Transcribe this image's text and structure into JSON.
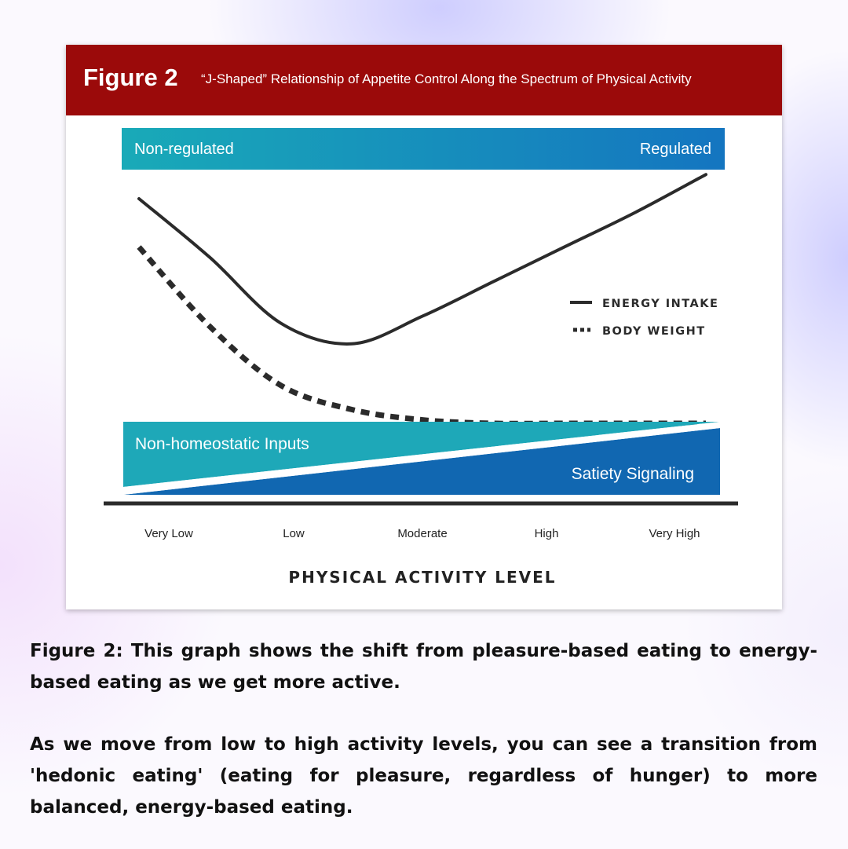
{
  "figure": {
    "label": "Figure 2",
    "title": "“J-Shaped” Relationship of Appetite Control Along the Spectrum of Physical Activity"
  },
  "colors": {
    "header_bg": "#9b0a0a",
    "band_teal": "#1ea8b8",
    "band_blue": "#1167b1",
    "line": "#2b2b2b"
  },
  "chart_data": {
    "type": "line",
    "title": "“J-Shaped” Relationship of Appetite Control Along the Spectrum of Physical Activity",
    "xlabel": "PHYSICAL ACTIVITY LEVEL",
    "ylabel": "",
    "categories": [
      "Very Low",
      "Low",
      "Moderate",
      "High",
      "Very High"
    ],
    "x": [
      0,
      0.5,
      1,
      1.5,
      2,
      2.5,
      3,
      3.5,
      4
    ],
    "xlim": [
      0,
      4
    ],
    "ylim": [
      0,
      10
    ],
    "grid": false,
    "legend_position": "right",
    "series": [
      {
        "name": "ENERGY INTAKE",
        "style": "solid",
        "values": [
          8.0,
          6.3,
          4.4,
          3.8,
          4.6,
          5.6,
          6.6,
          7.6,
          8.7
        ]
      },
      {
        "name": "BODY WEIGHT",
        "style": "dotted",
        "values": [
          6.6,
          4.3,
          2.6,
          1.9,
          1.6,
          1.5,
          1.5,
          1.5,
          1.5
        ]
      }
    ],
    "top_band": {
      "left_label": "Non-regulated",
      "right_label": "Regulated"
    },
    "bottom_band": {
      "upper_label": "Non-homeostatic Inputs",
      "lower_label": "Satiety Signaling"
    }
  },
  "caption": {
    "p1": "Figure 2: This graph shows the shift from pleasure-based eating to energy-based eating as we get more active.",
    "p2": "As we move from low to high activity levels, you can see a transition from 'hedonic eating' (eating for pleasure, regardless of hunger) to more balanced, energy-based eating."
  }
}
